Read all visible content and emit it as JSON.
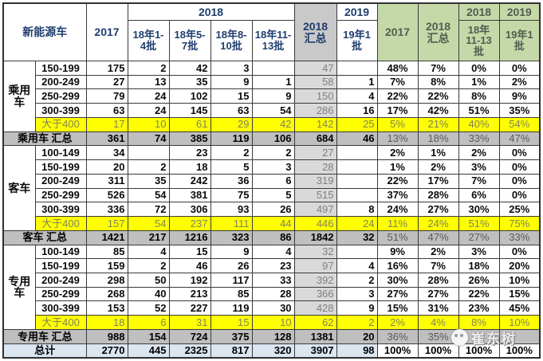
{
  "header": {
    "col_title": "新能源车",
    "y2017": "2017",
    "y2018": "2018",
    "y2019": "2019",
    "batches": [
      "18年1-4批",
      "18年5-7批",
      "18年8-10批",
      "18年11-13批"
    ],
    "sum2018": "2018 汇总",
    "batch19": "19年1批",
    "pct": {
      "y2017": "2017",
      "sum2018": "2018 汇总",
      "y2018": "2018",
      "batch1113": "18年11-13批",
      "y2019": "2019",
      "batch19": "19年1批"
    }
  },
  "sections": [
    {
      "group_label": "乘用车",
      "rows": [
        {
          "range": "150-199",
          "highlight": false,
          "values": [
            "175",
            "2",
            "42",
            "3",
            "",
            "47",
            "",
            "48%",
            "7%",
            "0%",
            "0%"
          ]
        },
        {
          "range": "200-249",
          "highlight": false,
          "values": [
            "27",
            "13",
            "35",
            "9",
            "1",
            "58",
            "1",
            "7%",
            "8%",
            "1%",
            "2%"
          ]
        },
        {
          "range": "250-299",
          "highlight": false,
          "values": [
            "79",
            "24",
            "102",
            "15",
            "9",
            "150",
            "4",
            "22%",
            "22%",
            "8%",
            "9%"
          ]
        },
        {
          "range": "300-399",
          "highlight": false,
          "values": [
            "63",
            "24",
            "145",
            "63",
            "54",
            "286",
            "16",
            "17%",
            "42%",
            "51%",
            "35%"
          ]
        },
        {
          "range": "大于400",
          "highlight": true,
          "values": [
            "17",
            "10",
            "61",
            "29",
            "42",
            "142",
            "25",
            "5%",
            "21%",
            "40%",
            "54%"
          ]
        }
      ],
      "total": {
        "label": "乘用车 汇总",
        "values": [
          "361",
          "74",
          "385",
          "119",
          "106",
          "684",
          "46",
          "13%",
          "18%",
          "33%",
          "47%"
        ]
      }
    },
    {
      "group_label": "客车",
      "rows": [
        {
          "range": "100-149",
          "highlight": false,
          "values": [
            "34",
            "",
            "23",
            "2",
            "2",
            "27",
            "",
            "2%",
            "1%",
            "2%",
            "0%"
          ]
        },
        {
          "range": "150-199",
          "highlight": false,
          "values": [
            "20",
            "2",
            "18",
            "5",
            "3",
            "28",
            "",
            "1%",
            "2%",
            "3%",
            "0%"
          ]
        },
        {
          "range": "200-249",
          "highlight": false,
          "values": [
            "311",
            "35",
            "242",
            "36",
            "6",
            "319",
            "",
            "22%",
            "17%",
            "7%",
            "0%"
          ]
        },
        {
          "range": "250-299",
          "highlight": false,
          "values": [
            "526",
            "54",
            "381",
            "75",
            "5",
            "515",
            "",
            "37%",
            "28%",
            "6%",
            "0%"
          ]
        },
        {
          "range": "300-399",
          "highlight": false,
          "values": [
            "336",
            "72",
            "306",
            "93",
            "26",
            "497",
            "8",
            "24%",
            "27%",
            "30%",
            "25%"
          ]
        },
        {
          "range": "大于400",
          "highlight": true,
          "values": [
            "157",
            "54",
            "237",
            "111",
            "44",
            "446",
            "24",
            "11%",
            "24%",
            "51%",
            "75%"
          ]
        }
      ],
      "total": {
        "label": "客车 汇总",
        "values": [
          "1421",
          "217",
          "1216",
          "323",
          "86",
          "1842",
          "32",
          "51%",
          "47%",
          "27%",
          "33%"
        ]
      }
    },
    {
      "group_label": "专用车",
      "rows": [
        {
          "range": "100-149",
          "highlight": false,
          "values": [
            "85",
            "4",
            "15",
            "9",
            "4",
            "32",
            "",
            "9%",
            "2%",
            "3%",
            "0%"
          ]
        },
        {
          "range": "150-199",
          "highlight": false,
          "values": [
            "159",
            "2",
            "46",
            "26",
            "23",
            "97",
            "4",
            "16%",
            "7%",
            "18%",
            "20%"
          ]
        },
        {
          "range": "200-249",
          "highlight": false,
          "values": [
            "298",
            "50",
            "192",
            "117",
            "33",
            "392",
            "2",
            "30%",
            "28%",
            "26%",
            "10%"
          ]
        },
        {
          "range": "250-299",
          "highlight": false,
          "values": [
            "268",
            "40",
            "213",
            "85",
            "28",
            "366",
            "3",
            "27%",
            "27%",
            "22%",
            "15%"
          ]
        },
        {
          "range": "300-399",
          "highlight": false,
          "values": [
            "153",
            "52",
            "227",
            "119",
            "30",
            "428",
            "9",
            "15%",
            "31%",
            "23%",
            "45%"
          ]
        },
        {
          "range": "大于400",
          "highlight": true,
          "values": [
            "18",
            "6",
            "31",
            "15",
            "10",
            "62",
            "2",
            "2%",
            "4%",
            "8%",
            "10%"
          ]
        }
      ],
      "total": {
        "label": "专用车 汇总",
        "values": [
          "988",
          "154",
          "724",
          "375",
          "128",
          "1381",
          "20",
          "36%",
          "35%",
          "",
          ""
        ]
      }
    }
  ],
  "grand_total": {
    "label": "总计",
    "values": [
      "2770",
      "445",
      "2325",
      "817",
      "320",
      "3907",
      "98",
      "100%",
      "100%",
      "100%",
      "100%"
    ]
  },
  "watermark": {
    "text": "崔东树",
    "icon": "wechat-icon"
  },
  "colors": {
    "header_text": "#1F3E6E",
    "green_header_bg": "#C5D9A8",
    "sum_col_bg": "#D9D9D9",
    "summary_row_bg": "#BFBFBF",
    "highlight_row_bg": "#FFFF00",
    "grand_row_bg": "#DCE6F1"
  }
}
